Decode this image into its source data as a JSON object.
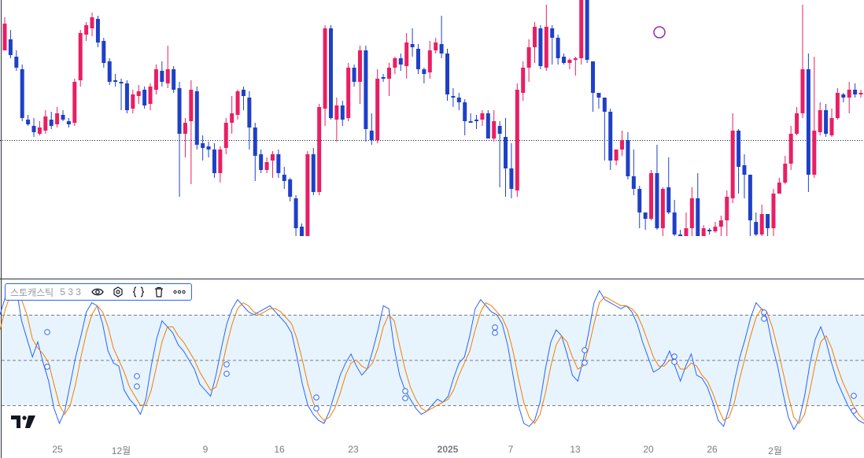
{
  "chart_data": [
    {
      "type": "candlestick",
      "title": "",
      "reference_line": "dotted horizontal line at last price",
      "colors": {
        "up": "#e91e63",
        "down": "#1e40c8"
      },
      "candles": [
        [
          236,
          270,
          278,
          258
        ],
        [
          250,
          230,
          262,
          226
        ],
        [
          228,
          214,
          236,
          210
        ],
        [
          212,
          150,
          218,
          146
        ],
        [
          148,
          142,
          154,
          140
        ],
        [
          140,
          132,
          150,
          126
        ],
        [
          130,
          138,
          146,
          128
        ],
        [
          134,
          152,
          160,
          130
        ],
        [
          148,
          140,
          158,
          136
        ],
        [
          142,
          156,
          164,
          138
        ],
        [
          154,
          148,
          160,
          146
        ],
        [
          146,
          142,
          150,
          138
        ],
        [
          144,
          196,
          200,
          140
        ],
        [
          198,
          258,
          262,
          190
        ],
        [
          256,
          268,
          272,
          248
        ],
        [
          264,
          278,
          284,
          254
        ],
        [
          276,
          246,
          280,
          240
        ],
        [
          248,
          220,
          252,
          214
        ],
        [
          222,
          196,
          226,
          192
        ],
        [
          198,
          198,
          206,
          190
        ],
        [
          196,
          194,
          200,
          160
        ],
        [
          194,
          160,
          198,
          156
        ],
        [
          162,
          180,
          186,
          156
        ],
        [
          178,
          184,
          192,
          168
        ],
        [
          186,
          166,
          190,
          162
        ],
        [
          168,
          190,
          194,
          160
        ],
        [
          186,
          212,
          218,
          180
        ],
        [
          210,
          196,
          222,
          190
        ],
        [
          194,
          212,
          242,
          188
        ],
        [
          212,
          186,
          216,
          182
        ],
        [
          188,
          130,
          196,
          50
        ],
        [
          130,
          144,
          150,
          100
        ],
        [
          146,
          186,
          198,
          66
        ],
        [
          184,
          116,
          190,
          110
        ],
        [
          118,
          112,
          128,
          96
        ],
        [
          114,
          110,
          120,
          100
        ],
        [
          110,
          80,
          118,
          74
        ],
        [
          80,
          110,
          114,
          68
        ],
        [
          112,
          144,
          150,
          104
        ],
        [
          144,
          156,
          178,
          130
        ],
        [
          154,
          184,
          186,
          148
        ],
        [
          186,
          178,
          190,
          160
        ],
        [
          176,
          138,
          184,
          110
        ],
        [
          138,
          102,
          144,
          70
        ],
        [
          104,
          84,
          110,
          80
        ],
        [
          84,
          94,
          100,
          80
        ],
        [
          96,
          104,
          108,
          74
        ],
        [
          104,
          80,
          110,
          74
        ],
        [
          78,
          70,
          88,
          60
        ],
        [
          72,
          50,
          74,
          44
        ],
        [
          48,
          10,
          52,
          0
        ],
        [
          12,
          0,
          16,
          0
        ],
        [
          0,
          104,
          108,
          0
        ],
        [
          104,
          56,
          112,
          52
        ],
        [
          56,
          164,
          168,
          52
        ],
        [
          162,
          264,
          268,
          140
        ],
        [
          264,
          150,
          268,
          148
        ],
        [
          148,
          166,
          176,
          120
        ],
        [
          166,
          148,
          172,
          140
        ],
        [
          150,
          214,
          220,
          146
        ],
        [
          214,
          196,
          218,
          190
        ],
        [
          196,
          236,
          242,
          168
        ],
        [
          236,
          136,
          242,
          120
        ],
        [
          134,
          122,
          156,
          116
        ],
        [
          122,
          200,
          212,
          118
        ],
        [
          202,
          200,
          206,
          196
        ],
        [
          200,
          214,
          220,
          178
        ],
        [
          214,
          226,
          228,
          206
        ],
        [
          226,
          218,
          232,
          210
        ],
        [
          216,
          246,
          258,
          200
        ],
        [
          244,
          240,
          264,
          228
        ],
        [
          238,
          212,
          244,
          206
        ],
        [
          212,
          206,
          214,
          194
        ],
        [
          208,
          236,
          248,
          200
        ],
        [
          236,
          246,
          252,
          232
        ],
        [
          244,
          232,
          280,
          226
        ],
        [
          232,
          180,
          238,
          172
        ],
        [
          178,
          176,
          188,
          164
        ],
        [
          176,
          170,
          182,
          160
        ],
        [
          170,
          146,
          174,
          128
        ],
        [
          146,
          146,
          156,
          144
        ],
        [
          148,
          146,
          154,
          136
        ],
        [
          148,
          156,
          160,
          140
        ],
        [
          156,
          124,
          160,
          128
        ],
        [
          124,
          146,
          160,
          120
        ],
        [
          140,
          130,
          146,
          62
        ],
        [
          126,
          86,
          150,
          50
        ],
        [
          86,
          60,
          118,
          48
        ],
        [
          58,
          186,
          194,
          50
        ],
        [
          182,
          214,
          222,
          172
        ],
        [
          214,
          240,
          250,
          196
        ],
        [
          240,
          266,
          272,
          220
        ],
        [
          264,
          216,
          268,
          212
        ],
        [
          214,
          266,
          294,
          210
        ],
        [
          264,
          252,
          268,
          218
        ],
        [
          252,
          226,
          256,
          218
        ],
        [
          228,
          220,
          232,
          218
        ],
        [
          220,
          224,
          226,
          212
        ],
        [
          224,
          226,
          228,
          204
        ],
        [
          226,
          302,
          312,
          218
        ],
        [
          302,
          224,
          340,
          220
        ],
        [
          222,
          182,
          186,
          158
        ],
        [
          182,
          176,
          180,
          162
        ],
        [
          176,
          158,
          168,
          96
        ],
        [
          158,
          96,
          162,
          84
        ],
        [
          96,
          110,
          110,
          90
        ],
        [
          110,
          122,
          134,
          102
        ],
        [
          122,
          76,
          132,
          72
        ],
        [
          76,
          60,
          110,
          52
        ],
        [
          60,
          30,
          64,
          10
        ],
        [
          30,
          22,
          30,
          8
        ],
        [
          22,
          80,
          84,
          20
        ],
        [
          80,
          10,
          116,
          8
        ],
        [
          10,
          60,
          62,
          0
        ],
        [
          62,
          30,
          100,
          28
        ],
        [
          30,
          2,
          46,
          0
        ],
        [
          2,
          0,
          8,
          0
        ],
        [
          0,
          10,
          30,
          0
        ],
        [
          10,
          48,
          62,
          0
        ],
        [
          48,
          0,
          80,
          0
        ],
        [
          0,
          10,
          14,
          0
        ],
        [
          8,
          6,
          10,
          2
        ],
        [
          6,
          12,
          18,
          4
        ],
        [
          12,
          20,
          26,
          0
        ],
        [
          20,
          50,
          58,
          0
        ],
        [
          48,
          134,
          156,
          42
        ],
        [
          134,
          88,
          136,
          54
        ],
        [
          90,
          78,
          104,
          48
        ],
        [
          78,
          20,
          30,
          0
        ],
        [
          18,
          2,
          30,
          0
        ],
        [
          2,
          28,
          40,
          0
        ],
        [
          28,
          10,
          28,
          0
        ],
        [
          10,
          54,
          60,
          0
        ],
        [
          54,
          68,
          74,
          54
        ],
        [
          68,
          92,
          102,
          66
        ],
        [
          92,
          130,
          140,
          84
        ],
        [
          130,
          156,
          164,
          128
        ],
        [
          156,
          212,
          294,
          150
        ],
        [
          212,
          78,
          232,
          56
        ],
        [
          78,
          134,
          228,
          74
        ],
        [
          132,
          160,
          170,
          128
        ],
        [
          160,
          130,
          168,
          126
        ],
        [
          128,
          150,
          162,
          126
        ],
        [
          150,
          182,
          188,
          148
        ],
        [
          180,
          176,
          182,
          170
        ],
        [
          176,
          186,
          196,
          156
        ],
        [
          186,
          180,
          194,
          176
        ],
        [
          180,
          182,
          186,
          176
        ]
      ],
      "series_note": "values are pixel-free relative price levels read top=0 of price pane"
    },
    {
      "type": "line",
      "title": "",
      "legend": {
        "name": "스토캐스틱",
        "params": "5 3 3"
      },
      "ylim": [
        0,
        100
      ],
      "levels": [
        80,
        50,
        20
      ],
      "x_tick_labels": [
        "25",
        "12월",
        "9",
        "16",
        "23",
        "2025",
        "7",
        "13",
        "20",
        "26",
        "2월"
      ],
      "series": [
        {
          "name": "",
          "color": "#2962ff",
          "values": [
            80,
            92,
            100,
            98,
            76,
            64,
            52,
            62,
            48,
            36,
            18,
            8,
            16,
            34,
            52,
            66,
            82,
            88,
            86,
            74,
            56,
            48,
            46,
            30,
            24,
            20,
            14,
            24,
            46,
            64,
            76,
            72,
            68,
            60,
            56,
            50,
            44,
            34,
            30,
            26,
            40,
            58,
            74,
            84,
            90,
            86,
            82,
            80,
            82,
            84,
            86,
            82,
            78,
            74,
            68,
            52,
            34,
            20,
            14,
            10,
            8,
            16,
            28,
            40,
            48,
            54,
            46,
            40,
            44,
            56,
            70,
            86,
            84,
            58,
            40,
            30,
            24,
            18,
            14,
            16,
            20,
            24,
            22,
            26,
            38,
            48,
            52,
            66,
            84,
            90,
            86,
            82,
            80,
            74,
            60,
            40,
            20,
            8,
            6,
            10,
            22,
            44,
            62,
            70,
            66,
            54,
            40,
            36,
            50,
            68,
            88,
            96,
            90,
            88,
            86,
            84,
            86,
            82,
            74,
            62,
            52,
            42,
            44,
            48,
            56,
            46,
            36,
            46,
            54,
            40,
            38,
            32,
            22,
            10,
            6,
            18,
            36,
            52,
            64,
            78,
            88,
            84,
            78,
            60,
            46,
            28,
            12,
            4,
            10,
            26,
            48,
            64,
            72,
            62,
            48,
            36,
            28,
            20,
            14,
            10,
            8
          ]
        },
        {
          "name": "",
          "color": "#f57c00",
          "values": [
            70,
            84,
            94,
            98,
            90,
            80,
            64,
            58,
            54,
            48,
            34,
            20,
            14,
            20,
            34,
            52,
            68,
            80,
            86,
            82,
            72,
            58,
            50,
            42,
            32,
            26,
            20,
            20,
            30,
            46,
            62,
            72,
            72,
            66,
            62,
            56,
            50,
            42,
            36,
            30,
            32,
            44,
            60,
            74,
            84,
            88,
            86,
            82,
            80,
            82,
            84,
            84,
            82,
            78,
            74,
            64,
            50,
            34,
            22,
            14,
            10,
            12,
            18,
            28,
            40,
            48,
            50,
            46,
            44,
            48,
            58,
            72,
            80,
            76,
            60,
            44,
            32,
            24,
            18,
            16,
            18,
            20,
            22,
            24,
            30,
            40,
            48,
            56,
            70,
            82,
            88,
            86,
            82,
            78,
            70,
            56,
            38,
            22,
            12,
            8,
            14,
            28,
            46,
            60,
            66,
            62,
            52,
            44,
            46,
            58,
            74,
            88,
            92,
            90,
            88,
            86,
            86,
            84,
            80,
            72,
            62,
            52,
            46,
            46,
            50,
            50,
            44,
            44,
            48,
            46,
            40,
            36,
            28,
            18,
            10,
            12,
            22,
            38,
            52,
            66,
            78,
            84,
            82,
            72,
            58,
            42,
            26,
            12,
            8,
            14,
            30,
            48,
            62,
            66,
            58,
            46,
            36,
            28,
            20,
            14,
            10
          ]
        }
      ]
    }
  ],
  "legend_label": "스토캐스틱",
  "legend_params": "5 3 3",
  "x_labels": [
    {
      "text": "25",
      "bold": false
    },
    {
      "text": "12월",
      "bold": false
    },
    {
      "text": "9",
      "bold": false
    },
    {
      "text": "16",
      "bold": false
    },
    {
      "text": "23",
      "bold": false
    },
    {
      "text": "2025",
      "bold": true
    },
    {
      "text": "7",
      "bold": false
    },
    {
      "text": "13",
      "bold": false
    },
    {
      "text": "20",
      "bold": false
    },
    {
      "text": "26",
      "bold": false
    },
    {
      "text": "2월",
      "bold": false
    }
  ],
  "icons": [
    "eye-icon",
    "settings-icon",
    "source-code-icon",
    "trash-icon",
    "more-icon",
    "tradingview-logo-icon"
  ]
}
